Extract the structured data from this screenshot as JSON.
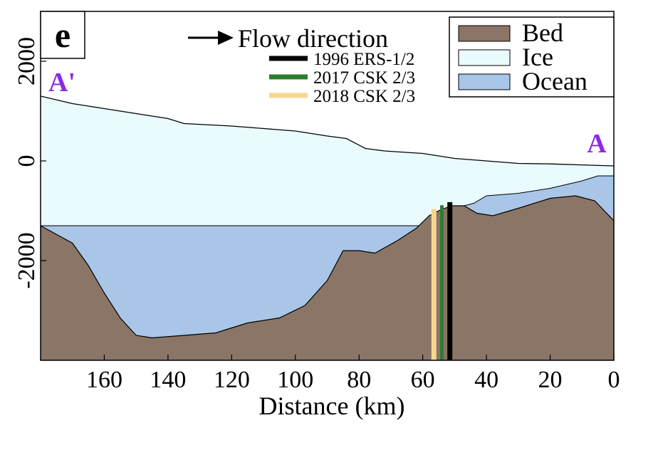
{
  "panel_label": "e",
  "flow_label": "Flow direction",
  "endpoint_left": "A'",
  "endpoint_right": "A",
  "endpoint_color": "#8a2be2",
  "colors": {
    "bed": "#8a7566",
    "ice": "#e9fbfd",
    "ocean": "#a9c6e8",
    "ers": "#000000",
    "csk2017": "#2e7d2e",
    "csk2018": "#f5d890"
  },
  "chart_data": {
    "type": "area",
    "title": "",
    "xlabel": "Distance (km)",
    "ylabel": "",
    "xlim": [
      180,
      0
    ],
    "ylim": [
      -4000,
      3000
    ],
    "x_ticks": [
      "160",
      "140",
      "120",
      "100",
      "80",
      "60",
      "40",
      "20",
      "0"
    ],
    "x_tick_values": [
      160,
      140,
      120,
      100,
      80,
      60,
      40,
      20,
      0
    ],
    "y_ticks": [
      "-2000",
      "0",
      "2000"
    ],
    "y_tick_values": [
      -2000,
      0,
      2000
    ],
    "legend": [
      {
        "label": "Bed",
        "color": "#8a7566"
      },
      {
        "label": "Ice",
        "color": "#e9fbfd"
      },
      {
        "label": "Ocean",
        "color": "#a9c6e8"
      }
    ],
    "legend_position": "top-right",
    "line_legend": [
      {
        "label": "1996 ERS-1/2",
        "color": "#000000"
      },
      {
        "label": "2017 CSK 2/3",
        "color": "#2e7d2e"
      },
      {
        "label": "2018 CSK 2/3",
        "color": "#f5d890"
      }
    ],
    "grounding_lines": [
      {
        "name": "1996 ERS-1/2",
        "x": 51.5,
        "color": "#000000"
      },
      {
        "name": "2017 CSK 2/3",
        "x": 54,
        "color": "#2e7d2e"
      },
      {
        "name": "2018 CSK 2/3",
        "x": 56.5,
        "color": "#f5d890"
      }
    ],
    "surface": [
      [
        180,
        1300
      ],
      [
        170,
        1150
      ],
      [
        160,
        1050
      ],
      [
        150,
        950
      ],
      [
        140,
        850
      ],
      [
        135,
        750
      ],
      [
        120,
        700
      ],
      [
        110,
        650
      ],
      [
        100,
        600
      ],
      [
        90,
        500
      ],
      [
        84,
        450
      ],
      [
        78,
        250
      ],
      [
        72,
        200
      ],
      [
        60,
        150
      ],
      [
        50,
        50
      ],
      [
        40,
        0
      ],
      [
        30,
        -50
      ],
      [
        20,
        -60
      ],
      [
        10,
        -80
      ],
      [
        0,
        -100
      ]
    ],
    "bed": [
      [
        180,
        -1300
      ],
      [
        170,
        -1650
      ],
      [
        165,
        -2100
      ],
      [
        160,
        -2650
      ],
      [
        155,
        -3150
      ],
      [
        150,
        -3500
      ],
      [
        145,
        -3550
      ],
      [
        135,
        -3500
      ],
      [
        125,
        -3450
      ],
      [
        115,
        -3250
      ],
      [
        105,
        -3150
      ],
      [
        97,
        -2900
      ],
      [
        90,
        -2400
      ],
      [
        85,
        -1800
      ],
      [
        80,
        -1800
      ],
      [
        75,
        -1850
      ],
      [
        68,
        -1600
      ],
      [
        62,
        -1350
      ],
      [
        58,
        -1100
      ],
      [
        55,
        -1000
      ],
      [
        51,
        -900
      ],
      [
        47,
        -900
      ],
      [
        43,
        -1050
      ],
      [
        38,
        -1100
      ],
      [
        30,
        -950
      ],
      [
        20,
        -750
      ],
      [
        12,
        -700
      ],
      [
        6,
        -800
      ],
      [
        0,
        -1200
      ]
    ],
    "ice_base": [
      [
        180,
        -1300
      ],
      [
        60,
        -1300
      ],
      [
        55,
        -1000
      ],
      [
        51,
        -900
      ],
      [
        47,
        -900
      ],
      [
        44,
        -850
      ],
      [
        40,
        -700
      ],
      [
        30,
        -650
      ],
      [
        20,
        -550
      ],
      [
        10,
        -400
      ],
      [
        5,
        -300
      ],
      [
        0,
        -300
      ]
    ]
  }
}
